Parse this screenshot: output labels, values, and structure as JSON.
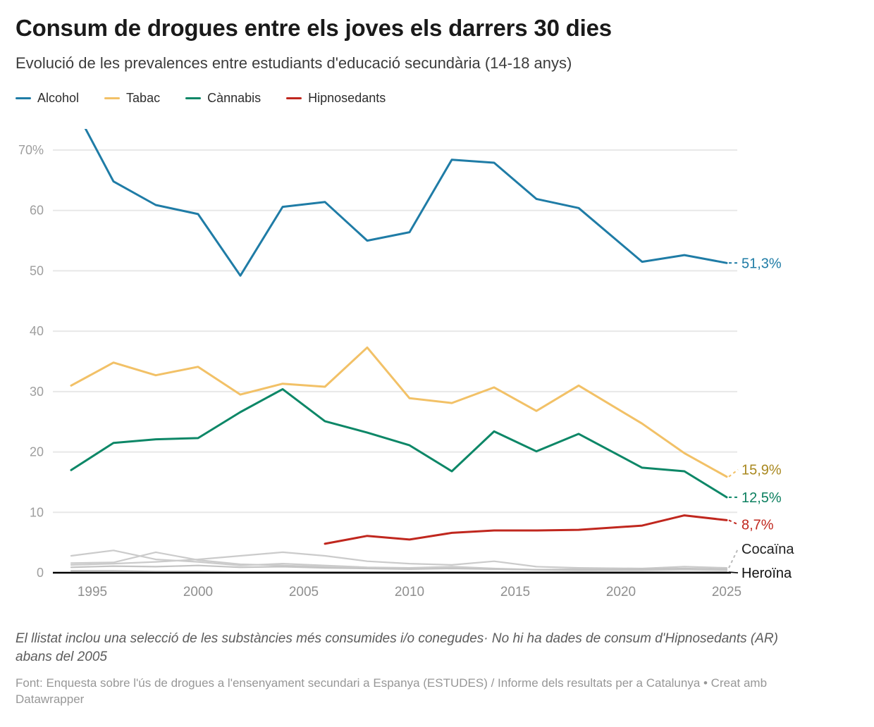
{
  "header": {
    "title": "Consum de drogues entre els joves els darrers 30 dies",
    "subtitle": "Evolució de les prevalences entre estudiants d'educació secundària (14-18 anys)"
  },
  "legend": [
    {
      "label": "Alcohol",
      "color": "#1f7ca6"
    },
    {
      "label": "Tabac",
      "color": "#f2c167"
    },
    {
      "label": "Cànnabis",
      "color": "#0d8767"
    },
    {
      "label": "Hipnosedants",
      "color": "#c0271e"
    }
  ],
  "chart_data": {
    "type": "line",
    "x": [
      1994,
      1996,
      1998,
      2000,
      2002,
      2004,
      2006,
      2008,
      2010,
      2012,
      2014,
      2016,
      2018,
      2021,
      2023,
      2025
    ],
    "series": [
      {
        "name": "Alcohol",
        "color": "#1f7ca6",
        "label_color": "#1f7ca6",
        "end_label": "51,3%",
        "first_point_clipped": true,
        "values": [
          78,
          64.8,
          60.9,
          59.4,
          49.2,
          60.6,
          61.4,
          55,
          56.4,
          68.4,
          67.9,
          61.9,
          60.4,
          51.5,
          52.6,
          51.3
        ]
      },
      {
        "name": "Tabac",
        "color": "#f2c167",
        "label_color": "#a9881f",
        "end_label": "15,9%",
        "values": [
          31,
          34.8,
          32.7,
          34.1,
          29.5,
          31.3,
          30.8,
          37.3,
          28.9,
          28.1,
          30.7,
          26.8,
          31,
          24.7,
          19.8,
          15.9
        ]
      },
      {
        "name": "Cànnabis",
        "color": "#0d8767",
        "label_color": "#0d8060",
        "end_label": "12,5%",
        "values": [
          17,
          21.5,
          22.1,
          22.3,
          26.6,
          30.4,
          25.1,
          23.2,
          21.1,
          16.8,
          23.4,
          20.1,
          23,
          17.4,
          16.8,
          12.5
        ]
      },
      {
        "name": "Hipnosedants",
        "color": "#c0271e",
        "label_color": "#c0271e",
        "end_label": "8,7%",
        "values": [
          null,
          null,
          null,
          null,
          null,
          null,
          4.8,
          6.1,
          5.5,
          6.6,
          7,
          7,
          7.1,
          7.8,
          9.5,
          8.7
        ]
      },
      {
        "name": "Cocaïna",
        "color": "#cbcbcb",
        "label_color": "#222222",
        "end_label": "Cocaïna",
        "values": [
          1.3,
          1.5,
          1.8,
          2.2,
          2.8,
          3.4,
          2.8,
          1.9,
          1.5,
          1.3,
          1.9,
          1,
          0.8,
          0.7,
          1,
          0.8
        ]
      },
      {
        "name": "",
        "color": "#cbcbcb",
        "end_label": "",
        "values": [
          2.8,
          3.7,
          2.2,
          1.8,
          1.2,
          1.5,
          1.2,
          0.9,
          0.8,
          1,
          0.7,
          0.5,
          0.6,
          0.5,
          0.6,
          0.5
        ]
      },
      {
        "name": "",
        "color": "#cbcbcb",
        "end_label": "",
        "values": [
          1.6,
          1.7,
          3.4,
          2.1,
          1.4,
          1.2,
          1,
          0.8,
          0.7,
          0.8,
          0.6,
          0.5,
          0.4,
          0.4,
          0.5,
          0.4
        ]
      },
      {
        "name": "",
        "color": "#c3c3c3",
        "end_label": "",
        "values": [
          0.9,
          1.1,
          1,
          1.2,
          0.9,
          1,
          0.8,
          0.7,
          0.6,
          0.7,
          0.6,
          0.5,
          0.5,
          0.6,
          0.7,
          0.6
        ]
      },
      {
        "name": "Heroïna",
        "color": "#b9b9b9",
        "label_color": "#111111",
        "end_label": "Heroïna",
        "values": [
          0.3,
          0.3,
          0.2,
          0.2,
          0.1,
          0.1,
          0.1,
          0.1,
          0.1,
          0.1,
          0.1,
          0.1,
          0.1,
          0.1,
          0.1,
          0.1
        ]
      }
    ],
    "y_axis": {
      "ticks": [
        0,
        10,
        20,
        30,
        40,
        50,
        60,
        70
      ],
      "tick_labels": [
        "0",
        "10",
        "20",
        "30",
        "40",
        "50",
        "60",
        "70%"
      ],
      "visible_max": 73.3,
      "grid": true
    },
    "x_axis": {
      "ticks": [
        1995,
        2000,
        2005,
        2010,
        2015,
        2020,
        2025
      ]
    },
    "title": "Consum de drogues entre els joves els darrers 30 dies",
    "xlabel": "",
    "ylabel": "%"
  },
  "footer": {
    "note": "El llistat inclou una selecció de les substàncies més consumides i/o conegudes· No hi ha dades de consum d'Hipnosedants (AR) abans del 2005",
    "source": "Font: Enquesta sobre l'ús de drogues a l'ensenyament secundari a Espanya (ESTUDES) / Informe dels resultats per a Catalunya • Creat amb Datawrapper"
  }
}
